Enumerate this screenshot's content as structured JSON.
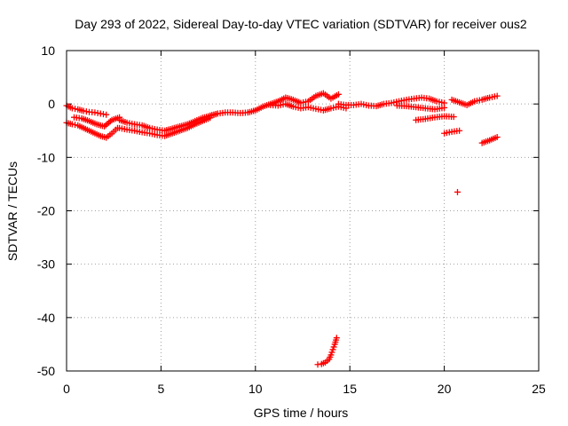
{
  "chart_data": {
    "type": "scatter",
    "title": "Day 293 of 2022, Sidereal Day-to-day VTEC variation (SDTVAR) for receiver ous2",
    "xlabel": "GPS time / hours",
    "ylabel": "SDTVAR / TECUs",
    "xlim": [
      0,
      25
    ],
    "ylim": [
      -50,
      10
    ],
    "xticks": [
      0,
      5,
      10,
      15,
      20,
      25
    ],
    "yticks": [
      10,
      0,
      -10,
      -20,
      -30,
      -40,
      -50
    ],
    "xtick_labels": [
      "0",
      "5",
      "10",
      "15",
      "20",
      "25"
    ],
    "ytick_labels": [
      "10",
      "0",
      "-10",
      "-20",
      "-30",
      "-40",
      "-50"
    ],
    "grid": true,
    "marker": "+",
    "color": "#ff0000",
    "series": [
      {
        "name": "track-early-upper",
        "x": [
          0.0,
          0.3,
          0.6,
          0.9,
          1.2,
          1.5,
          1.8,
          2.1
        ],
        "y": [
          -0.3,
          -0.8,
          -1.0,
          -1.3,
          -1.5,
          -1.6,
          -1.8,
          -2.0
        ]
      },
      {
        "name": "track-early-lower",
        "x": [
          0.0,
          0.3,
          0.6,
          0.9,
          1.2,
          1.5,
          1.8,
          2.1,
          2.4,
          2.7
        ],
        "y": [
          -3.5,
          -3.8,
          -4.0,
          -4.5,
          -5.0,
          -5.5,
          -6.0,
          -6.3,
          -5.5,
          -4.5
        ]
      },
      {
        "name": "track-early-mid",
        "x": [
          0.4,
          0.8,
          1.2,
          1.6,
          2.0,
          2.4,
          2.8
        ],
        "y": [
          -2.5,
          -2.7,
          -3.2,
          -3.8,
          -4.2,
          -3.0,
          -2.5
        ]
      },
      {
        "name": "track-morning-a",
        "x": [
          2.8,
          3.2,
          3.6,
          4.0,
          4.4,
          4.8,
          5.2,
          5.6,
          6.0,
          6.4,
          6.8,
          7.2,
          7.6,
          8.0
        ],
        "y": [
          -3.0,
          -3.5,
          -3.8,
          -4.0,
          -4.5,
          -4.8,
          -5.0,
          -4.6,
          -4.2,
          -3.8,
          -3.2,
          -2.6,
          -2.2,
          -1.8
        ]
      },
      {
        "name": "track-morning-b",
        "x": [
          2.8,
          3.2,
          3.6,
          4.0,
          4.4,
          4.8,
          5.2,
          5.6,
          6.0,
          6.4,
          6.8,
          7.2,
          7.6
        ],
        "y": [
          -4.5,
          -4.8,
          -5.0,
          -5.3,
          -5.5,
          -5.8,
          -6.0,
          -5.5,
          -5.0,
          -4.5,
          -3.8,
          -3.2,
          -2.6
        ]
      },
      {
        "name": "track-forenoon",
        "x": [
          7.6,
          8.0,
          8.4,
          8.8,
          9.2,
          9.6,
          10.0,
          10.4,
          10.8,
          11.2,
          11.6,
          12.0,
          12.4,
          12.8,
          13.2,
          13.6,
          14.0,
          14.4
        ],
        "y": [
          -2.2,
          -1.8,
          -1.6,
          -1.6,
          -1.7,
          -1.6,
          -1.2,
          -0.5,
          0.0,
          0.5,
          1.2,
          0.8,
          0.2,
          0.5,
          1.5,
          2.0,
          1.0,
          1.8
        ]
      },
      {
        "name": "track-midday-lower",
        "x": [
          10.8,
          11.2,
          11.6,
          12.0,
          12.4,
          12.8,
          13.2,
          13.6,
          14.0,
          14.4,
          14.8
        ],
        "y": [
          -0.2,
          -0.3,
          0.0,
          -0.5,
          -0.8,
          -0.6,
          -0.9,
          -1.2,
          -0.8,
          -0.5,
          -0.8
        ]
      },
      {
        "name": "track-afternoon",
        "x": [
          14.4,
          14.8,
          15.2,
          15.6,
          16.0,
          16.4,
          16.8,
          17.2,
          17.6,
          18.0,
          18.4,
          18.8,
          19.2,
          19.6,
          20.0
        ],
        "y": [
          0.0,
          -0.2,
          -0.2,
          0.0,
          -0.3,
          -0.4,
          0.0,
          0.2,
          0.5,
          0.8,
          1.0,
          1.2,
          1.0,
          0.5,
          0.2
        ]
      },
      {
        "name": "track-afternoon-lower",
        "x": [
          17.5,
          18.0,
          18.5,
          19.0,
          19.5,
          20.0
        ],
        "y": [
          -0.3,
          -0.4,
          -0.6,
          -0.8,
          -1.0,
          -0.7
        ]
      },
      {
        "name": "track-late-upper",
        "x": [
          20.4,
          20.8,
          21.2,
          21.6,
          22.0,
          22.4,
          22.8
        ],
        "y": [
          0.8,
          0.3,
          -0.2,
          0.5,
          0.8,
          1.2,
          1.5
        ]
      },
      {
        "name": "track-late-dip",
        "x": [
          18.5,
          19.0,
          19.5,
          20.0,
          20.5
        ],
        "y": [
          -3.0,
          -2.8,
          -2.5,
          -2.3,
          -2.4
        ]
      },
      {
        "name": "track-late-short",
        "x": [
          20.0,
          20.4,
          20.8
        ],
        "y": [
          -5.5,
          -5.2,
          -5.0
        ]
      },
      {
        "name": "track-end",
        "x": [
          22.0,
          22.4,
          22.8
        ],
        "y": [
          -7.3,
          -6.8,
          -6.2
        ]
      },
      {
        "name": "outlier",
        "x": [
          20.7
        ],
        "y": [
          -16.5
        ]
      },
      {
        "name": "track-drop",
        "x": [
          13.3,
          13.5,
          13.7,
          13.9,
          14.0,
          14.1,
          14.2,
          14.3
        ],
        "y": [
          -48.8,
          -48.7,
          -48.4,
          -47.8,
          -47.0,
          -46.0,
          -45.0,
          -43.8
        ]
      }
    ]
  }
}
